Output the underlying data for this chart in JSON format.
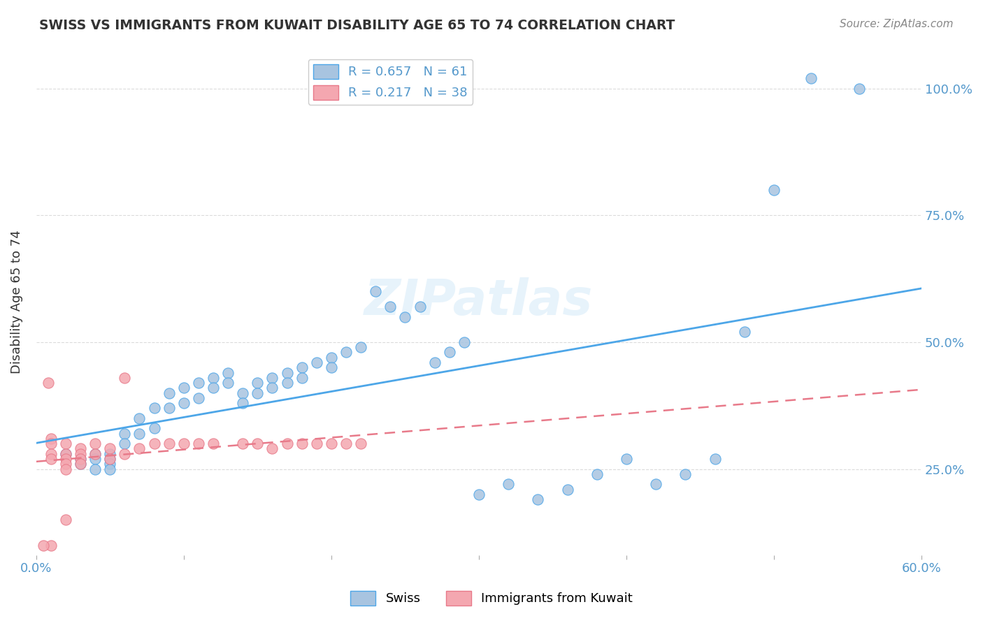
{
  "title": "SWISS VS IMMIGRANTS FROM KUWAIT DISABILITY AGE 65 TO 74 CORRELATION CHART",
  "source": "Source: ZipAtlas.com",
  "ylabel_label": "Disability Age 65 to 74",
  "x_min": 0.0,
  "x_max": 0.6,
  "y_min": 0.08,
  "y_max": 1.08,
  "y_ticks": [
    0.25,
    0.5,
    0.75,
    1.0
  ],
  "y_tick_labels": [
    "25.0%",
    "50.0%",
    "75.0%",
    "100.0%"
  ],
  "swiss_R": 0.657,
  "swiss_N": 61,
  "kuwait_R": 0.217,
  "kuwait_N": 38,
  "swiss_color": "#a8c4e0",
  "kuwait_color": "#f4a7b0",
  "swiss_line_color": "#4da6e8",
  "kuwait_edge_color": "#e87a8a",
  "watermark": "ZIPatlas",
  "swiss_x": [
    0.525,
    0.558,
    0.02,
    0.03,
    0.03,
    0.04,
    0.04,
    0.04,
    0.05,
    0.05,
    0.05,
    0.05,
    0.06,
    0.06,
    0.07,
    0.07,
    0.08,
    0.08,
    0.09,
    0.09,
    0.1,
    0.1,
    0.11,
    0.11,
    0.12,
    0.12,
    0.13,
    0.13,
    0.14,
    0.14,
    0.15,
    0.15,
    0.16,
    0.16,
    0.17,
    0.17,
    0.18,
    0.18,
    0.19,
    0.2,
    0.2,
    0.21,
    0.22,
    0.23,
    0.24,
    0.25,
    0.26,
    0.27,
    0.28,
    0.29,
    0.3,
    0.32,
    0.34,
    0.36,
    0.38,
    0.4,
    0.42,
    0.44,
    0.46,
    0.48,
    0.5
  ],
  "swiss_y": [
    1.02,
    1.0,
    0.28,
    0.27,
    0.26,
    0.28,
    0.27,
    0.25,
    0.28,
    0.27,
    0.26,
    0.25,
    0.32,
    0.3,
    0.35,
    0.32,
    0.37,
    0.33,
    0.4,
    0.37,
    0.41,
    0.38,
    0.42,
    0.39,
    0.43,
    0.41,
    0.44,
    0.42,
    0.4,
    0.38,
    0.42,
    0.4,
    0.43,
    0.41,
    0.44,
    0.42,
    0.45,
    0.43,
    0.46,
    0.47,
    0.45,
    0.48,
    0.49,
    0.6,
    0.57,
    0.55,
    0.57,
    0.46,
    0.48,
    0.5,
    0.2,
    0.22,
    0.19,
    0.21,
    0.24,
    0.27,
    0.22,
    0.24,
    0.27,
    0.52,
    0.8
  ],
  "kuwait_x": [
    0.01,
    0.01,
    0.01,
    0.01,
    0.01,
    0.02,
    0.02,
    0.02,
    0.02,
    0.02,
    0.02,
    0.03,
    0.03,
    0.03,
    0.03,
    0.04,
    0.04,
    0.05,
    0.05,
    0.06,
    0.06,
    0.07,
    0.08,
    0.09,
    0.1,
    0.11,
    0.12,
    0.14,
    0.15,
    0.16,
    0.17,
    0.18,
    0.19,
    0.2,
    0.21,
    0.22,
    0.005,
    0.008
  ],
  "kuwait_y": [
    0.31,
    0.3,
    0.28,
    0.27,
    0.1,
    0.3,
    0.28,
    0.27,
    0.26,
    0.25,
    0.15,
    0.29,
    0.28,
    0.27,
    0.26,
    0.3,
    0.28,
    0.29,
    0.27,
    0.43,
    0.28,
    0.29,
    0.3,
    0.3,
    0.3,
    0.3,
    0.3,
    0.3,
    0.3,
    0.29,
    0.3,
    0.3,
    0.3,
    0.3,
    0.3,
    0.3,
    0.1,
    0.42
  ]
}
